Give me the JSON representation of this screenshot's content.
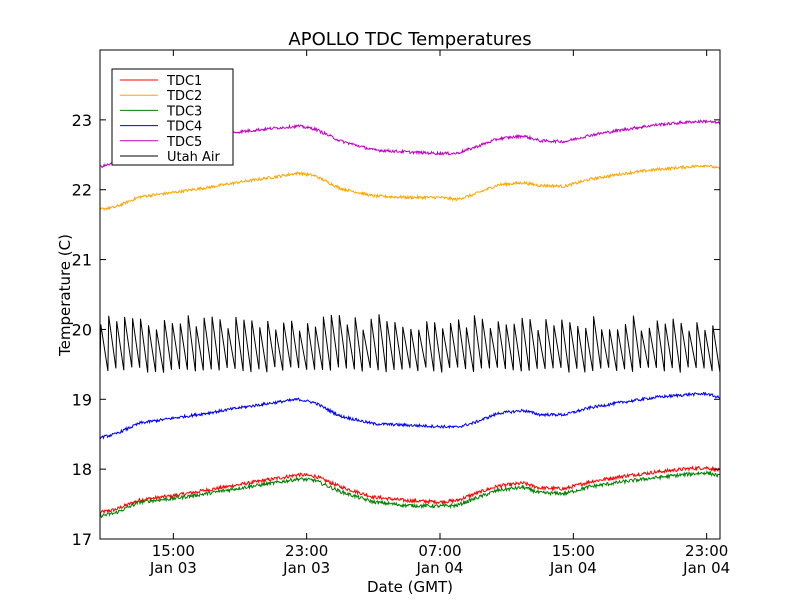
{
  "chart_data": {
    "type": "line",
    "title": "APOLLO TDC Temperatures",
    "xlabel": "Date (GMT)",
    "ylabel": "Temperature (C)",
    "xlim": [
      10.6,
      47.8
    ],
    "ylim": [
      17,
      24
    ],
    "yticks": [
      17,
      18,
      19,
      20,
      21,
      22,
      23
    ],
    "xticks": [
      {
        "x": 15,
        "time": "15:00",
        "date": "Jan 03"
      },
      {
        "x": 23,
        "time": "23:00",
        "date": "Jan 03"
      },
      {
        "x": 31,
        "time": "07:00",
        "date": "Jan 04"
      },
      {
        "x": 39,
        "time": "15:00",
        "date": "Jan 04"
      },
      {
        "x": 47,
        "time": "23:00",
        "date": "Jan 04"
      }
    ],
    "x_units": "hours since Jan 03 00:00 GMT",
    "legend_position": "top-left",
    "series": [
      {
        "name": "TDC1",
        "color": "#ff0000",
        "noise": 0.025,
        "x": [
          10.6,
          11.5,
          13,
          15,
          17,
          19,
          21,
          22.5,
          23.5,
          25,
          27,
          29,
          31,
          32,
          33,
          34.5,
          36,
          37,
          38.5,
          40,
          42,
          44,
          46,
          47,
          47.8
        ],
        "y": [
          17.38,
          17.42,
          17.56,
          17.62,
          17.7,
          17.78,
          17.86,
          17.92,
          17.9,
          17.75,
          17.6,
          17.55,
          17.53,
          17.55,
          17.64,
          17.76,
          17.8,
          17.73,
          17.72,
          17.82,
          17.9,
          17.96,
          18.01,
          18.02,
          17.98
        ]
      },
      {
        "name": "TDC2",
        "color": "#ffa500",
        "noise": 0.02,
        "x": [
          10.6,
          11.5,
          13,
          15,
          17,
          19,
          21,
          22.5,
          23.5,
          25,
          27,
          29,
          31,
          32,
          33,
          34.5,
          36,
          37,
          38.5,
          40,
          42,
          44,
          46,
          47,
          47.8
        ],
        "y": [
          21.72,
          21.75,
          21.9,
          21.96,
          22.03,
          22.11,
          22.18,
          22.24,
          22.2,
          22.02,
          21.91,
          21.89,
          21.89,
          21.86,
          21.93,
          22.07,
          22.1,
          22.06,
          22.05,
          22.15,
          22.23,
          22.29,
          22.33,
          22.35,
          22.3
        ]
      },
      {
        "name": "TDC3",
        "color": "#008000",
        "noise": 0.025,
        "x": [
          10.6,
          11.5,
          13,
          15,
          17,
          19,
          21,
          22.5,
          23.5,
          25,
          27,
          29,
          31,
          32,
          33,
          34.5,
          36,
          37,
          38.5,
          40,
          42,
          44,
          46,
          47,
          47.8
        ],
        "y": [
          17.33,
          17.37,
          17.53,
          17.58,
          17.65,
          17.73,
          17.8,
          17.86,
          17.84,
          17.68,
          17.53,
          17.48,
          17.47,
          17.48,
          17.57,
          17.7,
          17.74,
          17.66,
          17.65,
          17.75,
          17.82,
          17.88,
          17.93,
          17.95,
          17.9
        ]
      },
      {
        "name": "TDC4",
        "color": "#0000ff",
        "noise": 0.02,
        "x": [
          10.6,
          11.5,
          13,
          15,
          17,
          19,
          21,
          22.5,
          23.5,
          25,
          27,
          29,
          31,
          32,
          33,
          34.5,
          36,
          37,
          38.5,
          40,
          42,
          44,
          46,
          47,
          47.8
        ],
        "y": [
          18.45,
          18.5,
          18.66,
          18.73,
          18.8,
          18.88,
          18.95,
          19.0,
          18.95,
          18.76,
          18.65,
          18.63,
          18.61,
          18.6,
          18.66,
          18.8,
          18.84,
          18.78,
          18.78,
          18.88,
          18.96,
          19.03,
          19.07,
          19.08,
          19.02
        ]
      },
      {
        "name": "TDC5",
        "color": "#bf00bf",
        "noise": 0.02,
        "x": [
          10.6,
          11.5,
          13,
          15,
          17,
          19,
          21,
          22.5,
          23.5,
          25,
          27,
          29,
          31,
          32,
          33,
          34.5,
          36,
          37,
          38.5,
          40,
          42,
          44,
          46,
          47,
          47.8
        ],
        "y": [
          22.33,
          22.38,
          22.55,
          22.68,
          22.76,
          22.83,
          22.88,
          22.91,
          22.87,
          22.7,
          22.57,
          22.54,
          22.52,
          22.52,
          22.6,
          22.73,
          22.77,
          22.7,
          22.69,
          22.78,
          22.86,
          22.93,
          22.97,
          22.98,
          22.95
        ]
      },
      {
        "name": "Utah Air",
        "color": "#000000",
        "noise": 0,
        "sawtooth": {
          "x_start": 10.6,
          "x_end": 47.8,
          "cycles": 78,
          "low": 19.42,
          "high": 20.1
        }
      }
    ]
  }
}
